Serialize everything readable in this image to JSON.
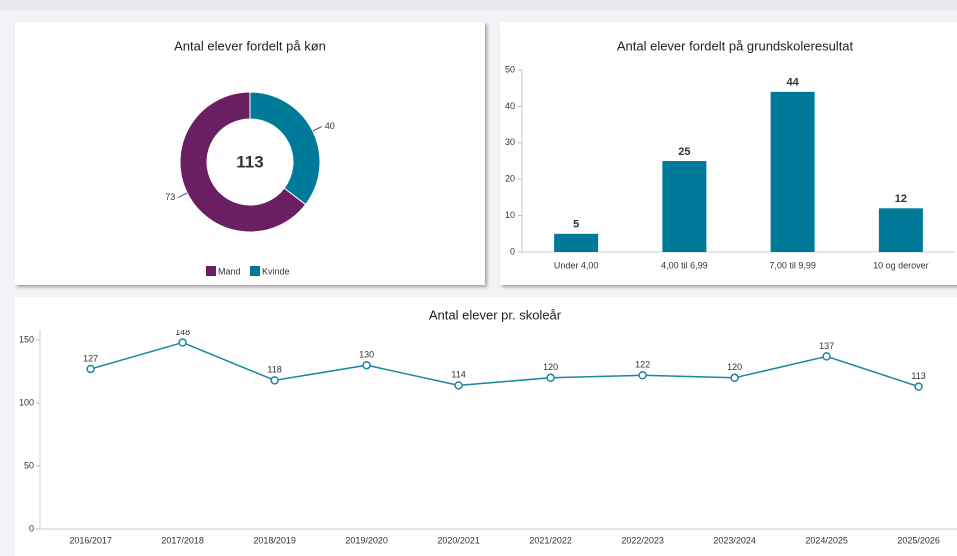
{
  "chart_data": [
    {
      "type": "donut",
      "title": "Antal elever fordelt på køn",
      "total": 113,
      "categories": [
        "Mand",
        "Kvinde"
      ],
      "values": [
        73,
        40
      ],
      "colors": [
        "#6a1f62",
        "#007a99"
      ]
    },
    {
      "type": "bar",
      "title": "Antal elever fordelt på grundskoleresultat",
      "categories": [
        "Under 4,00",
        "4,00 til 6,99",
        "7,00 til 9,99",
        "10 og derover"
      ],
      "values": [
        5,
        25,
        44,
        12
      ],
      "color": "#007a99",
      "ylim": [
        0,
        50
      ],
      "yticks": [
        0,
        10,
        20,
        30,
        40,
        50
      ]
    },
    {
      "type": "line",
      "title": "Antal elever pr. skoleår",
      "categories": [
        "2016/2017",
        "2017/2018",
        "2018/2019",
        "2019/2020",
        "2020/2021",
        "2021/2022",
        "2022/2023",
        "2023/2024",
        "2024/2025",
        "2025/2026"
      ],
      "values": [
        127,
        148,
        118,
        130,
        114,
        120,
        122,
        120,
        137,
        113
      ],
      "color": "#1a87a3",
      "ylim": [
        0,
        150
      ],
      "yticks": [
        0,
        50,
        100,
        150
      ]
    }
  ]
}
